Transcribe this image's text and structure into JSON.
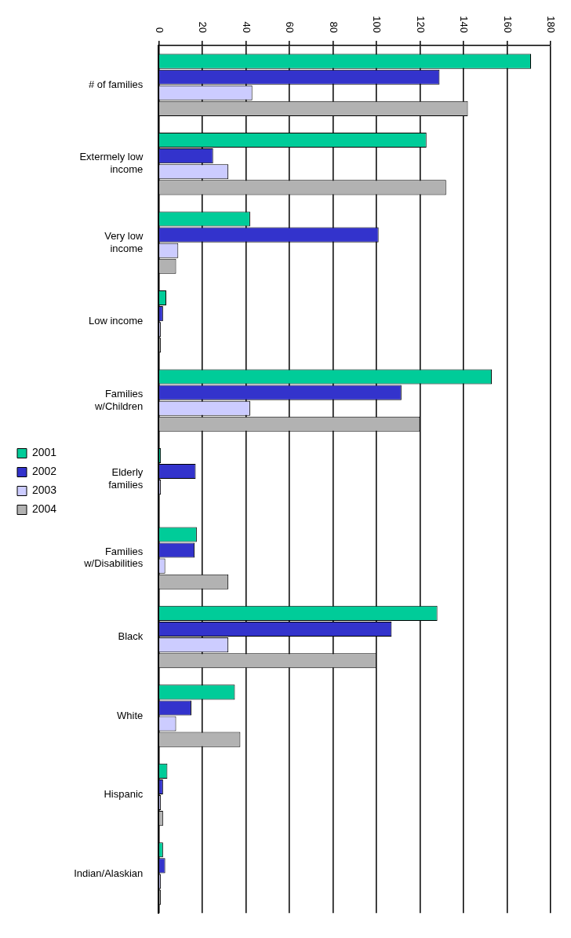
{
  "chart_data": {
    "type": "bar",
    "orientation": "horizontal",
    "categories": [
      "# of families",
      "Extermely low income",
      "Very low income",
      "Low income",
      "Families w/Children",
      "Elderly families",
      "Families w/Disabilities",
      "Black",
      "White",
      "Hispanic",
      "Indian/Alaskian"
    ],
    "series": [
      {
        "name": "2001",
        "color": "#00cc99",
        "values": [
          171,
          123,
          42,
          3.5,
          153,
          1,
          17.5,
          128,
          35,
          4,
          2
        ]
      },
      {
        "name": "2002",
        "color": "#3333cc",
        "values": [
          129,
          25,
          101,
          2,
          111.5,
          17,
          16.5,
          107,
          15,
          2,
          3
        ]
      },
      {
        "name": "2003",
        "color": "#ccccff",
        "values": [
          43,
          32,
          9,
          1,
          42,
          1,
          3,
          32,
          8,
          1,
          1
        ]
      },
      {
        "name": "2004",
        "color": "#b2b2b2",
        "values": [
          142,
          132,
          8,
          1,
          120,
          0,
          32,
          100,
          37.5,
          2,
          1
        ]
      }
    ],
    "xlim": [
      0,
      180
    ],
    "xticks": [
      0,
      20,
      40,
      60,
      80,
      100,
      120,
      140,
      160,
      180
    ],
    "grid": "x",
    "legend": "left"
  }
}
